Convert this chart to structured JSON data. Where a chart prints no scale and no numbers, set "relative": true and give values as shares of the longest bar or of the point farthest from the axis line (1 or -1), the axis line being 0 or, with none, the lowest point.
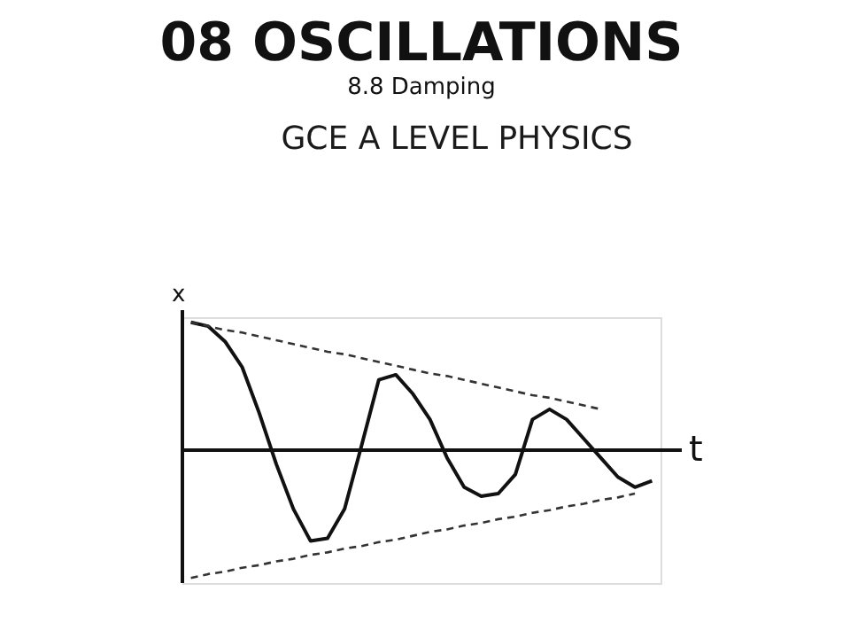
{
  "chart_data": {
    "type": "line",
    "relative": true,
    "title": "08 OSCILLATIONS",
    "subtitle": "8.8 Damping",
    "annotations": [
      "GCE A LEVEL PHYSICS"
    ],
    "xlabel": "t",
    "ylabel": "x",
    "marker": "none",
    "categories": [
      null,
      null,
      null,
      null,
      null,
      null,
      null,
      null,
      null,
      null,
      null,
      null,
      null,
      null,
      null,
      null,
      null,
      null,
      null,
      null,
      null,
      null,
      null,
      null,
      null,
      null,
      null,
      null
    ],
    "series": [
      {
        "color": "#111111",
        "line_style": "solid",
        "values": [
          1.0,
          0.97,
          0.85,
          0.65,
          0.29,
          -0.11,
          -0.46,
          -0.71,
          -0.69,
          -0.46,
          0.04,
          0.55,
          0.59,
          0.44,
          0.24,
          -0.06,
          -0.29,
          -0.36,
          -0.34,
          -0.19,
          0.24,
          0.32,
          0.24,
          0.09,
          -0.06,
          -0.21,
          -0.29,
          -0.24
        ]
      },
      {
        "color": "#333333",
        "line_style": "dashed",
        "values": [
          1.0,
          0.97,
          0.94,
          0.92,
          0.89,
          0.86,
          0.83,
          0.8,
          0.77,
          0.75,
          0.72,
          0.69,
          0.66,
          0.63,
          0.6,
          0.58,
          0.55,
          0.52,
          0.49,
          0.46,
          0.43,
          0.41,
          0.38,
          0.35,
          0.32,
          null,
          null,
          null
        ]
      },
      {
        "color": "#333333",
        "line_style": "dashed",
        "values": [
          -1.0,
          -0.97,
          -0.95,
          -0.92,
          -0.9,
          -0.87,
          -0.85,
          -0.82,
          -0.8,
          -0.77,
          -0.75,
          -0.72,
          -0.7,
          -0.67,
          -0.64,
          -0.62,
          -0.59,
          -0.57,
          -0.54,
          -0.52,
          -0.49,
          -0.47,
          -0.44,
          -0.42,
          -0.39,
          -0.37,
          -0.34,
          null
        ]
      }
    ]
  }
}
